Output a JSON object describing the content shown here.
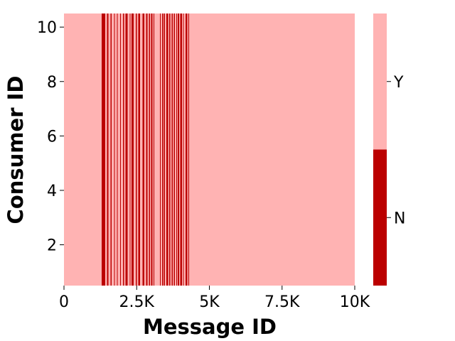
{
  "chart_data": {
    "type": "heatmap",
    "title": "",
    "xlabel": "Message ID",
    "ylabel": "Consumer ID",
    "xlim": [
      0,
      10000
    ],
    "ylim": [
      0.5,
      10.5
    ],
    "x_ticks": [
      {
        "value": 0,
        "label": "0"
      },
      {
        "value": 2500,
        "label": "2.5K"
      },
      {
        "value": 5000,
        "label": "5K"
      },
      {
        "value": 7500,
        "label": "7.5K"
      },
      {
        "value": 10000,
        "label": "10K"
      }
    ],
    "y_ticks": [
      {
        "value": 2,
        "label": "2"
      },
      {
        "value": 4,
        "label": "4"
      },
      {
        "value": 6,
        "label": "6"
      },
      {
        "value": 8,
        "label": "8"
      },
      {
        "value": 10,
        "label": "10"
      }
    ],
    "consumers": [
      1,
      2,
      3,
      4,
      5,
      6,
      7,
      8,
      9,
      10
    ],
    "categories": [
      "N",
      "Y"
    ],
    "colors": {
      "N": "#bb0000",
      "Y": "#ffb3b3"
    },
    "default_value": "Y",
    "n_message_ranges": [
      [
        1300,
        1420
      ],
      [
        1480,
        1530
      ],
      [
        1600,
        1640
      ],
      [
        1720,
        1750
      ],
      [
        1820,
        1850
      ],
      [
        1930,
        1960
      ],
      [
        2030,
        2060
      ],
      [
        2120,
        2190
      ],
      [
        2260,
        2290
      ],
      [
        2320,
        2400
      ],
      [
        2470,
        2500
      ],
      [
        2550,
        2620
      ],
      [
        2700,
        2760
      ],
      [
        2830,
        2870
      ],
      [
        2920,
        2960
      ],
      [
        3000,
        3040
      ],
      [
        3080,
        3110
      ],
      [
        3300,
        3330
      ],
      [
        3370,
        3410
      ],
      [
        3440,
        3470
      ],
      [
        3520,
        3580
      ],
      [
        3620,
        3650
      ],
      [
        3700,
        3740
      ],
      [
        3780,
        3810
      ],
      [
        3860,
        3880
      ],
      [
        3910,
        3960
      ],
      [
        4000,
        4060
      ],
      [
        4100,
        4120
      ],
      [
        4180,
        4240
      ],
      [
        4280,
        4300
      ]
    ],
    "colorbar": {
      "labels": [
        {
          "value": "Y",
          "label": "Y"
        },
        {
          "value": "N",
          "label": "N"
        }
      ]
    },
    "grid": false,
    "legend": "colorbar-right"
  }
}
